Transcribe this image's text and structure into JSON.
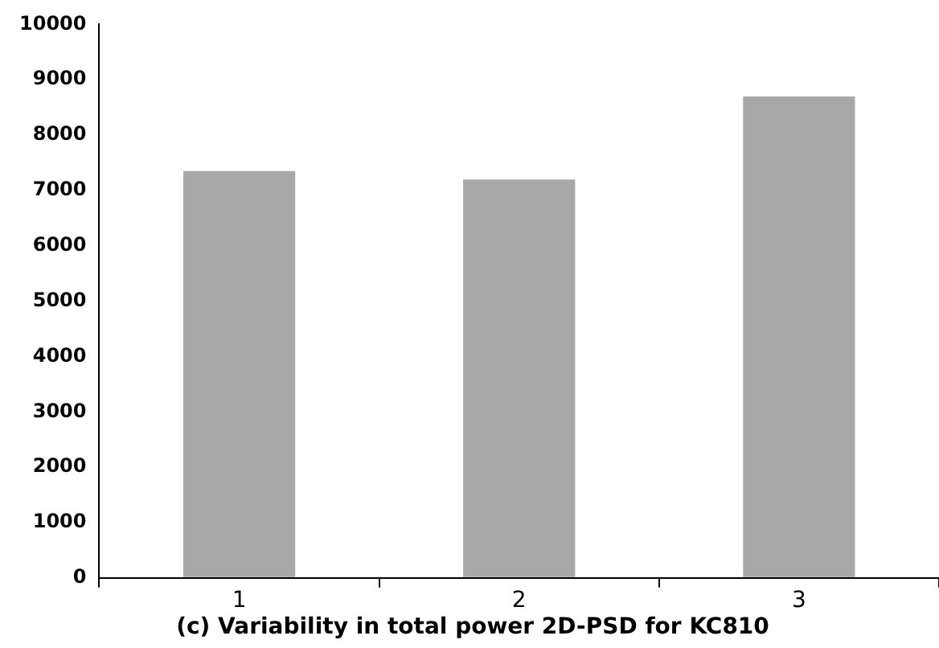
{
  "chart_data": {
    "type": "bar",
    "title": "(c) Variability in total power 2D-PSD for KC810",
    "categories": [
      "1",
      "2",
      "3"
    ],
    "values": [
      7350,
      7200,
      8700
    ],
    "color": "#a8a8a8",
    "ylim": [
      0,
      10000
    ],
    "yticks": [
      0,
      1000,
      2000,
      3000,
      4000,
      5000,
      6000,
      7000,
      8000,
      9000,
      10000
    ],
    "grid": false,
    "legend": false
  }
}
